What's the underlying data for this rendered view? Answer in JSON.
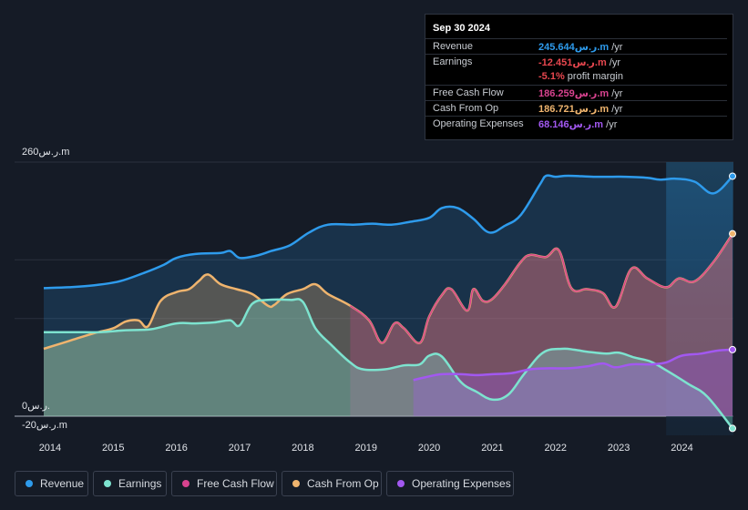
{
  "tooltip": {
    "date": "Sep 30 2024",
    "rows": [
      {
        "label": "Revenue",
        "value": "245.644ر.س.m",
        "suffix": " /yr",
        "color": "#2e9bec"
      },
      {
        "label": "Earnings",
        "value": "-12.451ر.س.m",
        "suffix": " /yr",
        "color": "#e8474f"
      },
      {
        "label": "",
        "value": "-5.1%",
        "suffix": " profit margin",
        "color": "#e8474f"
      },
      {
        "label": "Free Cash Flow",
        "value": "186.259ر.س.m",
        "suffix": " /yr",
        "color": "#d8438f"
      },
      {
        "label": "Cash From Op",
        "value": "186.721ر.س.m",
        "suffix": " /yr",
        "color": "#efb46e"
      },
      {
        "label": "Operating Expenses",
        "value": "68.146ر.س.m",
        "suffix": " /yr",
        "color": "#a258f0"
      }
    ]
  },
  "legend": [
    {
      "label": "Revenue",
      "color": "#2e9bec"
    },
    {
      "label": "Earnings",
      "color": "#7de3cf"
    },
    {
      "label": "Free Cash Flow",
      "color": "#d8438f"
    },
    {
      "label": "Cash From Op",
      "color": "#efb46e"
    },
    {
      "label": "Operating Expenses",
      "color": "#a258f0"
    }
  ],
  "chart_data": {
    "type": "area",
    "title": "",
    "xlabel": "",
    "ylabel": "",
    "y_unit": "ر.س.m",
    "y_labels": [
      "260ر.س.m",
      "0ر.س.",
      "-20ر.س.m"
    ],
    "ylim": [
      -20,
      260
    ],
    "xlim": [
      2013.9,
      2024.8
    ],
    "x_ticks": [
      "2014",
      "2015",
      "2016",
      "2017",
      "2018",
      "2019",
      "2020",
      "2021",
      "2022",
      "2023",
      "2024"
    ],
    "highlight_from": 2023.75,
    "series": [
      {
        "name": "Revenue",
        "color": "#2e9bec",
        "fill": true,
        "points": [
          [
            2013.9,
            131
          ],
          [
            2014.3,
            132
          ],
          [
            2014.7,
            134
          ],
          [
            2015.1,
            138
          ],
          [
            2015.5,
            147
          ],
          [
            2015.8,
            155
          ],
          [
            2016.0,
            162
          ],
          [
            2016.3,
            166
          ],
          [
            2016.7,
            167
          ],
          [
            2016.85,
            169
          ],
          [
            2017.0,
            162
          ],
          [
            2017.25,
            164
          ],
          [
            2017.5,
            169
          ],
          [
            2017.8,
            175
          ],
          [
            2018.1,
            188
          ],
          [
            2018.4,
            196
          ],
          [
            2018.8,
            196
          ],
          [
            2019.1,
            197
          ],
          [
            2019.4,
            196
          ],
          [
            2019.7,
            199
          ],
          [
            2020.0,
            203
          ],
          [
            2020.2,
            213
          ],
          [
            2020.45,
            213
          ],
          [
            2020.7,
            202
          ],
          [
            2020.95,
            188
          ],
          [
            2021.2,
            195
          ],
          [
            2021.45,
            206
          ],
          [
            2021.75,
            237
          ],
          [
            2021.85,
            246
          ],
          [
            2022.0,
            245
          ],
          [
            2022.2,
            246
          ],
          [
            2022.6,
            245
          ],
          [
            2022.9,
            245
          ],
          [
            2023.1,
            245
          ],
          [
            2023.45,
            244
          ],
          [
            2023.65,
            242
          ],
          [
            2023.9,
            243
          ],
          [
            2024.2,
            240
          ],
          [
            2024.5,
            228
          ],
          [
            2024.8,
            245.6
          ]
        ]
      },
      {
        "name": "Earnings",
        "color": "#7de3cf",
        "fill": true,
        "points": [
          [
            2013.9,
            86
          ],
          [
            2014.4,
            86
          ],
          [
            2014.8,
            86
          ],
          [
            2015.2,
            88
          ],
          [
            2015.6,
            89
          ],
          [
            2016.0,
            95
          ],
          [
            2016.3,
            95
          ],
          [
            2016.6,
            96
          ],
          [
            2016.85,
            98
          ],
          [
            2017.0,
            93
          ],
          [
            2017.2,
            115
          ],
          [
            2017.45,
            119
          ],
          [
            2017.8,
            119
          ],
          [
            2018.0,
            117
          ],
          [
            2018.2,
            90
          ],
          [
            2018.45,
            73
          ],
          [
            2018.75,
            55
          ],
          [
            2018.95,
            48
          ],
          [
            2019.3,
            48
          ],
          [
            2019.6,
            52
          ],
          [
            2019.85,
            53
          ],
          [
            2020.0,
            62
          ],
          [
            2020.2,
            61
          ],
          [
            2020.5,
            35
          ],
          [
            2020.75,
            25
          ],
          [
            2021.0,
            17
          ],
          [
            2021.25,
            22
          ],
          [
            2021.5,
            43
          ],
          [
            2021.8,
            65
          ],
          [
            2022.1,
            69
          ],
          [
            2022.3,
            68
          ],
          [
            2022.5,
            66
          ],
          [
            2022.8,
            64
          ],
          [
            2023.0,
            65
          ],
          [
            2023.25,
            60
          ],
          [
            2023.5,
            56
          ],
          [
            2023.75,
            47
          ],
          [
            2024.1,
            33
          ],
          [
            2024.4,
            20
          ],
          [
            2024.8,
            -12.5
          ]
        ]
      },
      {
        "name": "Free Cash Flow",
        "color": "#d8438f",
        "fill": true,
        "points": [
          [
            2018.75,
            113
          ],
          [
            2019.05,
            98
          ],
          [
            2019.25,
            75
          ],
          [
            2019.45,
            95
          ],
          [
            2019.6,
            90
          ],
          [
            2019.85,
            75
          ],
          [
            2020.0,
            102
          ],
          [
            2020.2,
            124
          ],
          [
            2020.35,
            130
          ],
          [
            2020.6,
            108
          ],
          [
            2020.7,
            130
          ],
          [
            2020.85,
            118
          ],
          [
            2021.0,
            120
          ],
          [
            2021.2,
            135
          ],
          [
            2021.45,
            158
          ],
          [
            2021.6,
            165
          ],
          [
            2021.85,
            163
          ],
          [
            2022.05,
            170
          ],
          [
            2022.25,
            131
          ],
          [
            2022.5,
            130
          ],
          [
            2022.75,
            126
          ],
          [
            2022.95,
            112
          ],
          [
            2023.2,
            151
          ],
          [
            2023.45,
            141
          ],
          [
            2023.75,
            132
          ],
          [
            2023.95,
            141
          ],
          [
            2024.2,
            138
          ],
          [
            2024.5,
            158
          ],
          [
            2024.8,
            186.3
          ]
        ]
      },
      {
        "name": "Cash From Op",
        "color": "#efb46e",
        "fill": true,
        "points": [
          [
            2013.9,
            69
          ],
          [
            2014.3,
            77
          ],
          [
            2014.7,
            85
          ],
          [
            2015.0,
            90
          ],
          [
            2015.2,
            97
          ],
          [
            2015.4,
            98
          ],
          [
            2015.55,
            92
          ],
          [
            2015.75,
            118
          ],
          [
            2016.0,
            127
          ],
          [
            2016.2,
            130
          ],
          [
            2016.35,
            138
          ],
          [
            2016.5,
            145
          ],
          [
            2016.7,
            135
          ],
          [
            2016.95,
            130
          ],
          [
            2017.2,
            125
          ],
          [
            2017.45,
            113
          ],
          [
            2017.55,
            114
          ],
          [
            2017.75,
            125
          ],
          [
            2018.0,
            130
          ],
          [
            2018.2,
            135
          ],
          [
            2018.4,
            125
          ],
          [
            2018.75,
            113
          ],
          [
            2019.05,
            98
          ],
          [
            2019.25,
            75
          ],
          [
            2019.45,
            95
          ],
          [
            2019.6,
            90
          ],
          [
            2019.85,
            75
          ],
          [
            2020.0,
            102
          ],
          [
            2020.2,
            124
          ],
          [
            2020.35,
            130
          ],
          [
            2020.6,
            108
          ],
          [
            2020.7,
            130
          ],
          [
            2020.85,
            118
          ],
          [
            2021.0,
            120
          ],
          [
            2021.2,
            135
          ],
          [
            2021.45,
            158
          ],
          [
            2021.6,
            165
          ],
          [
            2021.85,
            163
          ],
          [
            2022.05,
            170
          ],
          [
            2022.25,
            131
          ],
          [
            2022.5,
            130
          ],
          [
            2022.75,
            126
          ],
          [
            2022.95,
            112
          ],
          [
            2023.2,
            151
          ],
          [
            2023.45,
            141
          ],
          [
            2023.75,
            132
          ],
          [
            2023.95,
            141
          ],
          [
            2024.2,
            138
          ],
          [
            2024.5,
            158
          ],
          [
            2024.8,
            186.7
          ]
        ]
      },
      {
        "name": "Operating Expenses",
        "color": "#a258f0",
        "fill": true,
        "points": [
          [
            2019.75,
            37
          ],
          [
            2019.95,
            40
          ],
          [
            2020.2,
            43
          ],
          [
            2020.5,
            43
          ],
          [
            2020.75,
            42
          ],
          [
            2021.0,
            43
          ],
          [
            2021.3,
            44
          ],
          [
            2021.6,
            48
          ],
          [
            2021.9,
            49
          ],
          [
            2022.2,
            49
          ],
          [
            2022.5,
            51
          ],
          [
            2022.75,
            54
          ],
          [
            2022.95,
            50
          ],
          [
            2023.2,
            53
          ],
          [
            2023.5,
            53
          ],
          [
            2023.75,
            55
          ],
          [
            2024.0,
            62
          ],
          [
            2024.3,
            64
          ],
          [
            2024.55,
            67
          ],
          [
            2024.8,
            68.1
          ]
        ]
      }
    ]
  }
}
